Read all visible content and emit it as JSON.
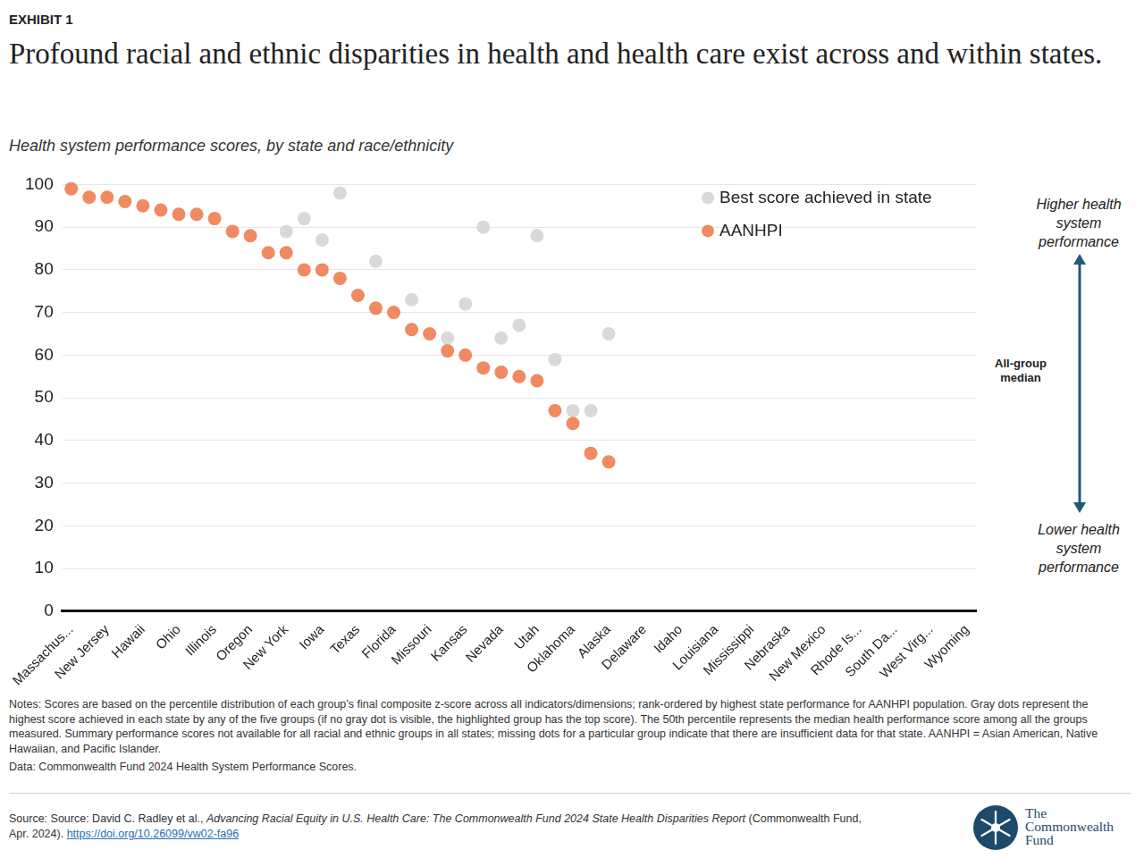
{
  "page": {
    "exhibit": "EXHIBIT 1",
    "notes": "Notes: Scores are based on the percentile distribution of each group’s final composite z-score across all indicators/dimensions; rank-ordered by highest state performance for AANHPI population. Gray dots represent the highest score achieved in each state by any of the five groups (if no gray dot is visible, the highlighted group has the top score). The 50th percentile represents the median health performance score among all the groups measured. Summary performance scores not available for all racial and ethnic groups in all states; missing dots for a particular group indicate that there are insufficient data for that state. AANHPI = Asian American, Native Hawaiian, and Pacific Islander.",
    "data": "Data: Commonwealth Fund 2024 Health System Performance Scores.",
    "source": {
      "text": "Source: Source: David C. Radley et al.,",
      "title": "Advancing Racial Equity in U.S. Health Care: The Commonwealth Fund 2024 State Health Disparities Report",
      "after": "(Commonwealth Fund, Apr. 2024).",
      "link": "https://doi.org/10.26099/vw02-fa96"
    },
    "logo": [
      "The",
      "Commonwealth",
      "Fund"
    ]
  },
  "chart_data": {
    "type": "scatter",
    "title": "Profound racial and ethnic disparities in health and health care exist across and within states.",
    "subtitle": "Health system performance scores, by state and race/ethnicity",
    "categories": [
      "Massachus...",
      null,
      "New Jersey",
      null,
      "Hawaii",
      null,
      "Ohio",
      null,
      "Illinois",
      null,
      "Oregon",
      null,
      "New York",
      null,
      "Iowa",
      null,
      "Texas",
      null,
      "Florida",
      null,
      "Missouri",
      null,
      "Kansas",
      null,
      "Nevada",
      null,
      "Utah",
      null,
      "Oklahoma",
      null,
      "Alaska",
      null,
      "Delaware",
      null,
      "Idaho",
      null,
      "Louisiana",
      null,
      "Mississippi",
      null,
      "Nebraska",
      null,
      "New Mexico",
      null,
      "Rhode Is...",
      null,
      "South Da...",
      null,
      "West Virg...",
      null,
      "Wyoming"
    ],
    "series": [
      {
        "name": "Best score achieved in state",
        "color": "#d9d9d9",
        "marker": "circle",
        "values": [
          null,
          null,
          null,
          null,
          null,
          null,
          null,
          null,
          null,
          null,
          null,
          null,
          89,
          92,
          87,
          98,
          null,
          82,
          null,
          73,
          null,
          64,
          72,
          90,
          64,
          67,
          88,
          59,
          47,
          47,
          65,
          null,
          null,
          null,
          null,
          null,
          null,
          null,
          null,
          null,
          null,
          null,
          null,
          null,
          null,
          null,
          null,
          null,
          null,
          null,
          null
        ]
      },
      {
        "name": "AANHPI",
        "color": "#f08a62",
        "marker": "circle",
        "values": [
          99,
          97,
          97,
          96,
          95,
          94,
          93,
          93,
          92,
          89,
          88,
          84,
          84,
          80,
          80,
          78,
          74,
          71,
          70,
          66,
          65,
          61,
          60,
          57,
          56,
          55,
          54,
          47,
          44,
          37,
          35,
          null,
          null,
          null,
          null,
          null,
          null,
          null,
          null,
          null,
          null,
          null,
          null,
          null,
          null,
          null,
          null,
          null,
          null,
          null,
          null
        ]
      }
    ],
    "ylim": [
      0,
      100
    ],
    "yticks": [
      0,
      10,
      20,
      30,
      40,
      50,
      60,
      70,
      80,
      90,
      100
    ],
    "grid": true,
    "legend": "upper right",
    "annotations": [
      "Higher health system performance",
      "All-group median",
      "Lower health system performance"
    ]
  }
}
